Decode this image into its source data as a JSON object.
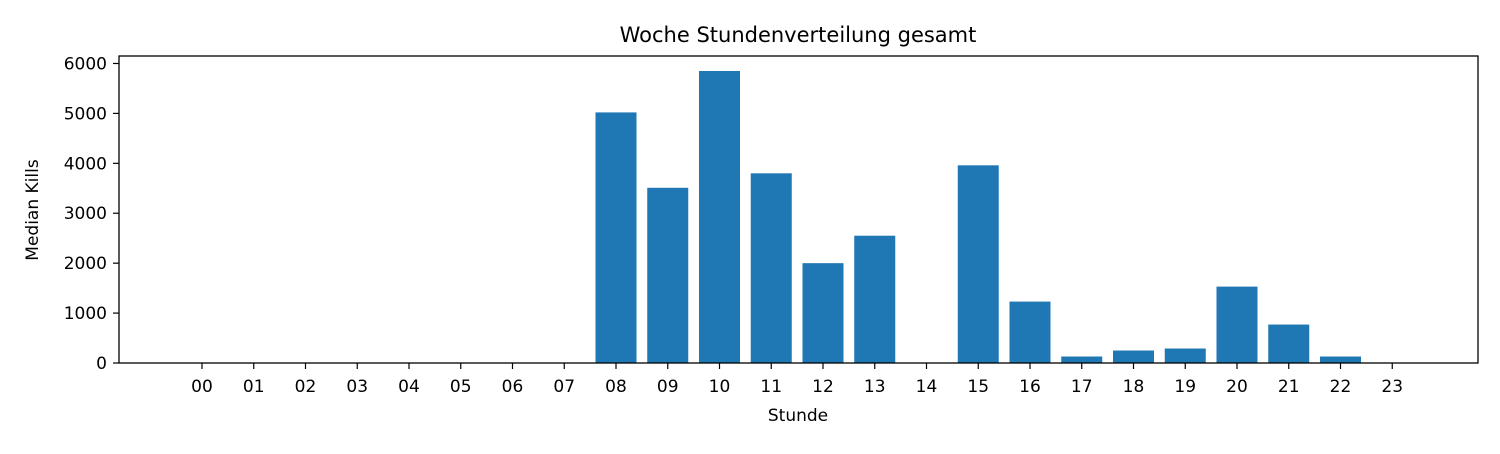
{
  "chart_data": {
    "type": "bar",
    "title": "Woche Stundenverteilung gesamt",
    "xlabel": "Stunde",
    "ylabel": "Median Kills",
    "categories": [
      "00",
      "01",
      "02",
      "03",
      "04",
      "05",
      "06",
      "07",
      "08",
      "09",
      "10",
      "11",
      "12",
      "13",
      "14",
      "15",
      "16",
      "17",
      "18",
      "19",
      "20",
      "21",
      "22",
      "23"
    ],
    "values": [
      0,
      0,
      0,
      0,
      0,
      0,
      0,
      0,
      5020,
      3510,
      5850,
      3800,
      2000,
      2550,
      0,
      3960,
      1230,
      130,
      250,
      290,
      1530,
      770,
      130,
      0
    ],
    "ylim": [
      0,
      6150
    ],
    "yticks": [
      0,
      1000,
      2000,
      3000,
      4000,
      5000,
      6000
    ],
    "bar_color": "#1f77b4",
    "grid": false,
    "legend": "none"
  }
}
